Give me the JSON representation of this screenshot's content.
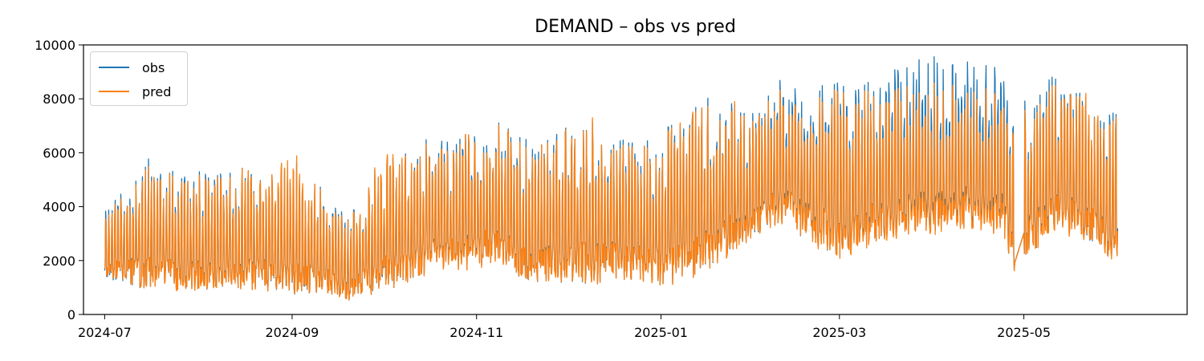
{
  "chart_data": {
    "type": "line",
    "title": "DEMAND – obs vs pred",
    "xlabel": "",
    "ylabel": "",
    "x_axis": {
      "type": "date",
      "range": [
        "2024-06-24",
        "2025-06-24"
      ],
      "ticks": [
        "2024-07",
        "2024-09",
        "2024-11",
        "2025-01",
        "2025-03",
        "2025-05"
      ]
    },
    "y_axis": {
      "range": [
        0,
        10000
      ],
      "ticks": [
        0,
        2000,
        4000,
        6000,
        8000,
        10000
      ]
    },
    "grid": false,
    "legend": "top-left",
    "series": [
      {
        "name": "obs",
        "color": "#1f77b4",
        "envelope": [
          {
            "x": "2024-07-01",
            "low": 1200,
            "high": 4000
          },
          {
            "x": "2024-07-15",
            "low": 800,
            "high": 5800
          },
          {
            "x": "2024-08-01",
            "low": 800,
            "high": 5300
          },
          {
            "x": "2024-08-15",
            "low": 850,
            "high": 5600
          },
          {
            "x": "2024-09-01",
            "low": 650,
            "high": 5800
          },
          {
            "x": "2024-09-15",
            "low": 600,
            "high": 4500
          },
          {
            "x": "2024-09-20",
            "low": 450,
            "high": 3700
          },
          {
            "x": "2024-10-01",
            "low": 700,
            "high": 6000
          },
          {
            "x": "2024-10-15",
            "low": 1400,
            "high": 6500
          },
          {
            "x": "2024-11-01",
            "low": 1600,
            "high": 6800
          },
          {
            "x": "2024-11-07",
            "low": 1800,
            "high": 7300
          },
          {
            "x": "2024-11-20",
            "low": 1000,
            "high": 6500
          },
          {
            "x": "2024-12-10",
            "low": 1000,
            "high": 7400
          },
          {
            "x": "2024-12-20",
            "low": 1200,
            "high": 6700
          },
          {
            "x": "2025-01-01",
            "low": 900,
            "high": 6900
          },
          {
            "x": "2025-01-15",
            "low": 1300,
            "high": 8100
          },
          {
            "x": "2025-02-01",
            "low": 2800,
            "high": 7700
          },
          {
            "x": "2025-02-10",
            "low": 3200,
            "high": 8800
          },
          {
            "x": "2025-03-01",
            "low": 1900,
            "high": 8600
          },
          {
            "x": "2025-03-15",
            "low": 2700,
            "high": 9000
          },
          {
            "x": "2025-03-28",
            "low": 2800,
            "high": 9700
          },
          {
            "x": "2025-04-08",
            "low": 3100,
            "high": 9400
          },
          {
            "x": "2025-04-24",
            "low": 2800,
            "high": 9500
          },
          {
            "x": "2025-04-28",
            "low": 1400,
            "high": 7700
          },
          {
            "x": "2025-05-10",
            "low": 3000,
            "high": 8900
          },
          {
            "x": "2025-05-20",
            "low": 2800,
            "high": 8200
          },
          {
            "x": "2025-06-01",
            "low": 1500,
            "high": 7800
          }
        ]
      },
      {
        "name": "pred",
        "color": "#ff7f0e",
        "envelope": [
          {
            "x": "2024-07-01",
            "low": 1300,
            "high": 3800
          },
          {
            "x": "2024-07-15",
            "low": 800,
            "high": 5700
          },
          {
            "x": "2024-08-01",
            "low": 800,
            "high": 5200
          },
          {
            "x": "2024-08-15",
            "low": 850,
            "high": 5500
          },
          {
            "x": "2024-09-01",
            "low": 650,
            "high": 6100
          },
          {
            "x": "2024-09-15",
            "low": 600,
            "high": 4400
          },
          {
            "x": "2024-09-20",
            "low": 450,
            "high": 3600
          },
          {
            "x": "2024-10-01",
            "low": 700,
            "high": 6300
          },
          {
            "x": "2024-10-15",
            "low": 1400,
            "high": 6400
          },
          {
            "x": "2024-11-01",
            "low": 1600,
            "high": 6700
          },
          {
            "x": "2024-11-07",
            "low": 1800,
            "high": 7200
          },
          {
            "x": "2024-11-20",
            "low": 1000,
            "high": 6400
          },
          {
            "x": "2024-12-10",
            "low": 1000,
            "high": 7400
          },
          {
            "x": "2024-12-20",
            "low": 1200,
            "high": 6600
          },
          {
            "x": "2025-01-01",
            "low": 900,
            "high": 6800
          },
          {
            "x": "2025-01-15",
            "low": 1300,
            "high": 8100
          },
          {
            "x": "2025-02-01",
            "low": 2800,
            "high": 7600
          },
          {
            "x": "2025-02-10",
            "low": 3200,
            "high": 8400
          },
          {
            "x": "2025-03-01",
            "low": 1900,
            "high": 8300
          },
          {
            "x": "2025-03-15",
            "low": 2700,
            "high": 8600
          },
          {
            "x": "2025-03-28",
            "low": 2800,
            "high": 8600
          },
          {
            "x": "2025-04-08",
            "low": 3100,
            "high": 8500
          },
          {
            "x": "2025-04-24",
            "low": 2800,
            "high": 8400
          },
          {
            "x": "2025-04-28",
            "low": 1400,
            "high": 7600
          },
          {
            "x": "2025-05-10",
            "low": 3000,
            "high": 8500
          },
          {
            "x": "2025-05-20",
            "low": 2800,
            "high": 8300
          },
          {
            "x": "2025-06-01",
            "low": 1500,
            "high": 7600
          }
        ]
      }
    ],
    "gap": {
      "from": "2025-04-28",
      "to": "2025-05-01"
    }
  }
}
